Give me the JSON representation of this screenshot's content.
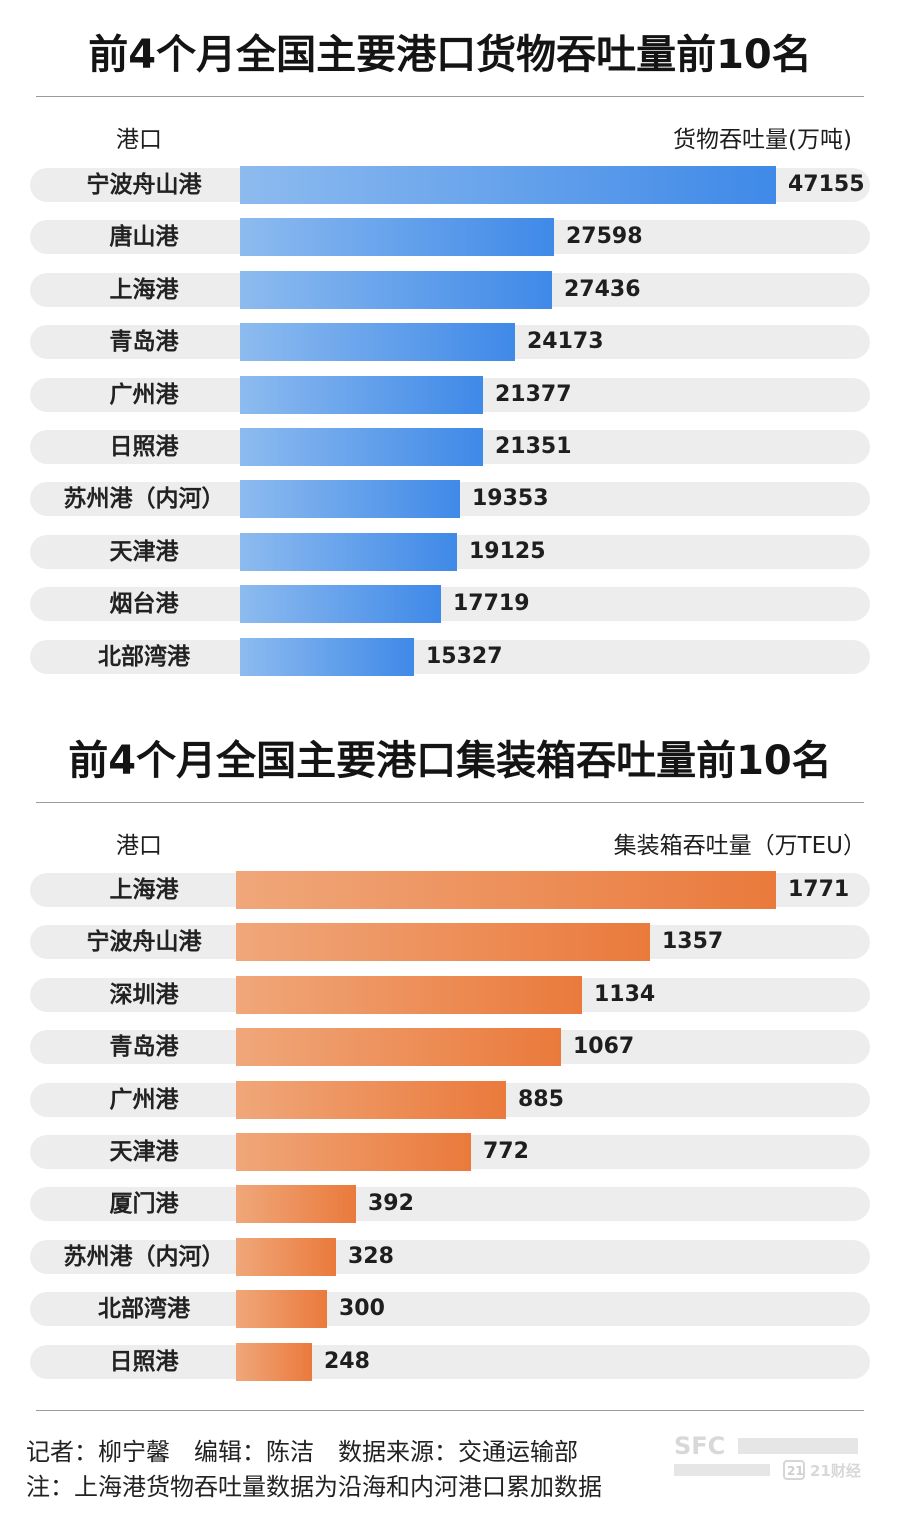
{
  "chart_data": [
    {
      "type": "bar",
      "orientation": "horizontal",
      "title": "前4个月全国主要港口货物吞吐量前10名",
      "xlabel": "货物吞吐量(万吨)",
      "ylabel": "港口",
      "categories": [
        "宁波舟山港",
        "唐山港",
        "上海港",
        "青岛港",
        "广州港",
        "日照港",
        "苏州港（内河）",
        "天津港",
        "烟台港",
        "北部湾港"
      ],
      "values": [
        47155,
        27598,
        27436,
        24173,
        21377,
        21351,
        19353,
        19125,
        17719,
        15327
      ],
      "color": "#4a8fe9"
    },
    {
      "type": "bar",
      "orientation": "horizontal",
      "title": "前4个月全国主要港口集装箱吞吐量前10名",
      "xlabel": "集装箱吞吐量（万TEU）",
      "ylabel": "港口",
      "categories": [
        "上海港",
        "宁波舟山港",
        "深圳港",
        "青岛港",
        "广州港",
        "天津港",
        "厦门港",
        "苏州港（内河）",
        "北部湾港",
        "日照港"
      ],
      "values": [
        1771,
        1357,
        1134,
        1067,
        885,
        772,
        392,
        328,
        300,
        248
      ],
      "color": "#ec7f43"
    }
  ],
  "footer": {
    "credits": "记者：柳宁馨　编辑：陈洁　数据来源：交通运输部",
    "note": "注：上海港货物吞吐量数据为沿海和内河港口累加数据"
  },
  "logo": {
    "icon": "sfc-logo",
    "text1": "SFC",
    "text2": "21",
    "text3": "21财经"
  }
}
